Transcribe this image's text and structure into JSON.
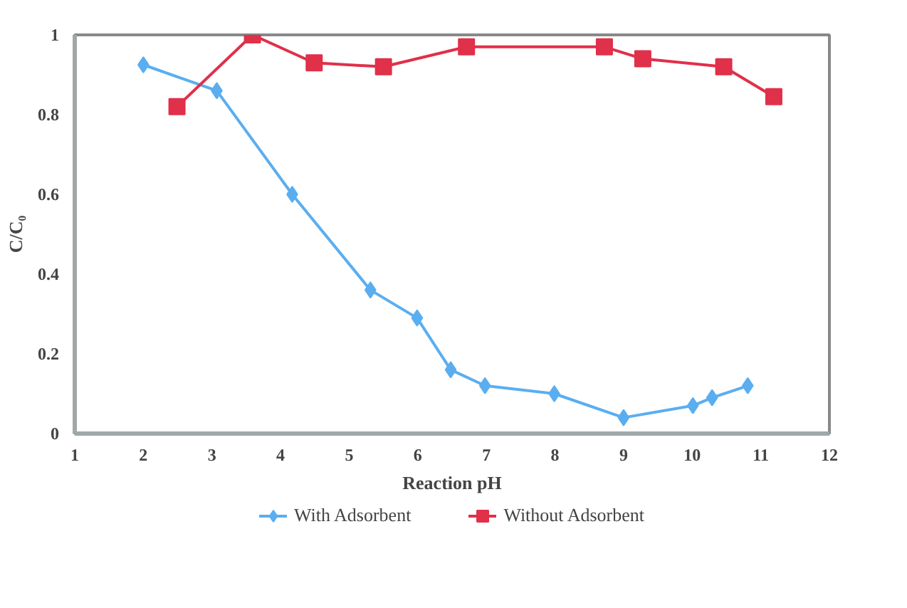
{
  "chart_data": {
    "type": "line",
    "xlabel": "Reaction pH",
    "ylabel": "C/C₀",
    "xlim": [
      1,
      12
    ],
    "xticks": [
      1,
      2,
      3,
      4,
      5,
      6,
      7,
      8,
      9,
      10,
      11,
      12
    ],
    "ylim": [
      0,
      1
    ],
    "yticks": [
      0,
      0.2,
      0.4,
      0.6,
      0.8,
      1
    ],
    "grid": false,
    "legend": "bottom",
    "series": [
      {
        "name": "With Adsorbent",
        "color": "#5aaef0",
        "marker": "diamond",
        "x": [
          2,
          3.07,
          4.17,
          5.31,
          5.99,
          6.48,
          6.98,
          7.99,
          9.0,
          10.01,
          10.29,
          10.81
        ],
        "values": [
          0.925,
          0.86,
          0.6,
          0.36,
          0.29,
          0.16,
          0.12,
          0.1,
          0.04,
          0.07,
          0.09,
          0.12
        ]
      },
      {
        "name": "Without Adsorbent",
        "color": "#e0304a",
        "marker": "square",
        "x": [
          2.49,
          3.59,
          4.49,
          5.5,
          6.71,
          8.72,
          9.28,
          10.46,
          11.19
        ],
        "values": [
          0.82,
          1.0,
          0.93,
          0.92,
          0.97,
          0.97,
          0.94,
          0.92,
          0.845
        ]
      }
    ]
  }
}
